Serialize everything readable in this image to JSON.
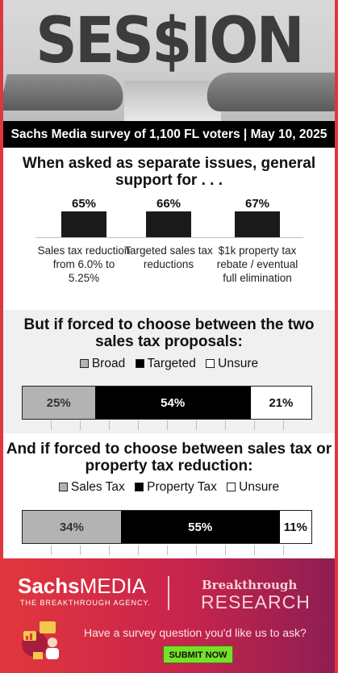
{
  "header": {
    "title": "SES$ION",
    "survey_line": "Sachs Media survey of 1,100 FL voters | May 10, 2025"
  },
  "colors": {
    "frame_red": "#e0363f",
    "black": "#1a1a1a",
    "grey_bar": "#b3b3b3",
    "white": "#ffffff",
    "submit_green": "#76e02a"
  },
  "chart_data": [
    {
      "type": "bar",
      "title": "When asked as separate issues, general support for . . .",
      "categories": [
        "Sales tax reduction from 6.0% to 5.25%",
        "Targeted sales tax reductions",
        "$1k property tax rebate / eventual full elimination"
      ],
      "values": [
        65,
        66,
        67
      ],
      "value_labels": [
        "65%",
        "66%",
        "67%"
      ]
    },
    {
      "type": "bar",
      "stacked": true,
      "orientation": "horizontal",
      "title": "But if forced to choose between the two sales tax proposals:",
      "series": [
        {
          "name": "Broad",
          "values": [
            25
          ],
          "label": "25%",
          "color": "#b3b3b3"
        },
        {
          "name": "Targeted",
          "values": [
            54
          ],
          "label": "54%",
          "color": "#000000"
        },
        {
          "name": "Unsure",
          "values": [
            21
          ],
          "label": "21%",
          "color": "#ffffff"
        }
      ]
    },
    {
      "type": "bar",
      "stacked": true,
      "orientation": "horizontal",
      "title": "And if forced to choose between sales tax or property tax reduction:",
      "series": [
        {
          "name": "Sales Tax",
          "values": [
            34
          ],
          "label": "34%",
          "color": "#b3b3b3"
        },
        {
          "name": "Property Tax",
          "values": [
            55
          ],
          "label": "55%",
          "color": "#000000"
        },
        {
          "name": "Unsure",
          "values": [
            11
          ],
          "label": "11%",
          "color": "#ffffff"
        }
      ]
    }
  ],
  "footer": {
    "brand_sachs_bold": "Sachs",
    "brand_sachs_light": "MEDIA",
    "brand_tagline": "THE BREAKTHROUGH AGENCY.",
    "brand_breakthrough": "Breakthrough",
    "brand_research": "RESEARCH",
    "question": "Have a survey question you'd like us to ask?",
    "submit_label": "SUBMIT NOW"
  }
}
